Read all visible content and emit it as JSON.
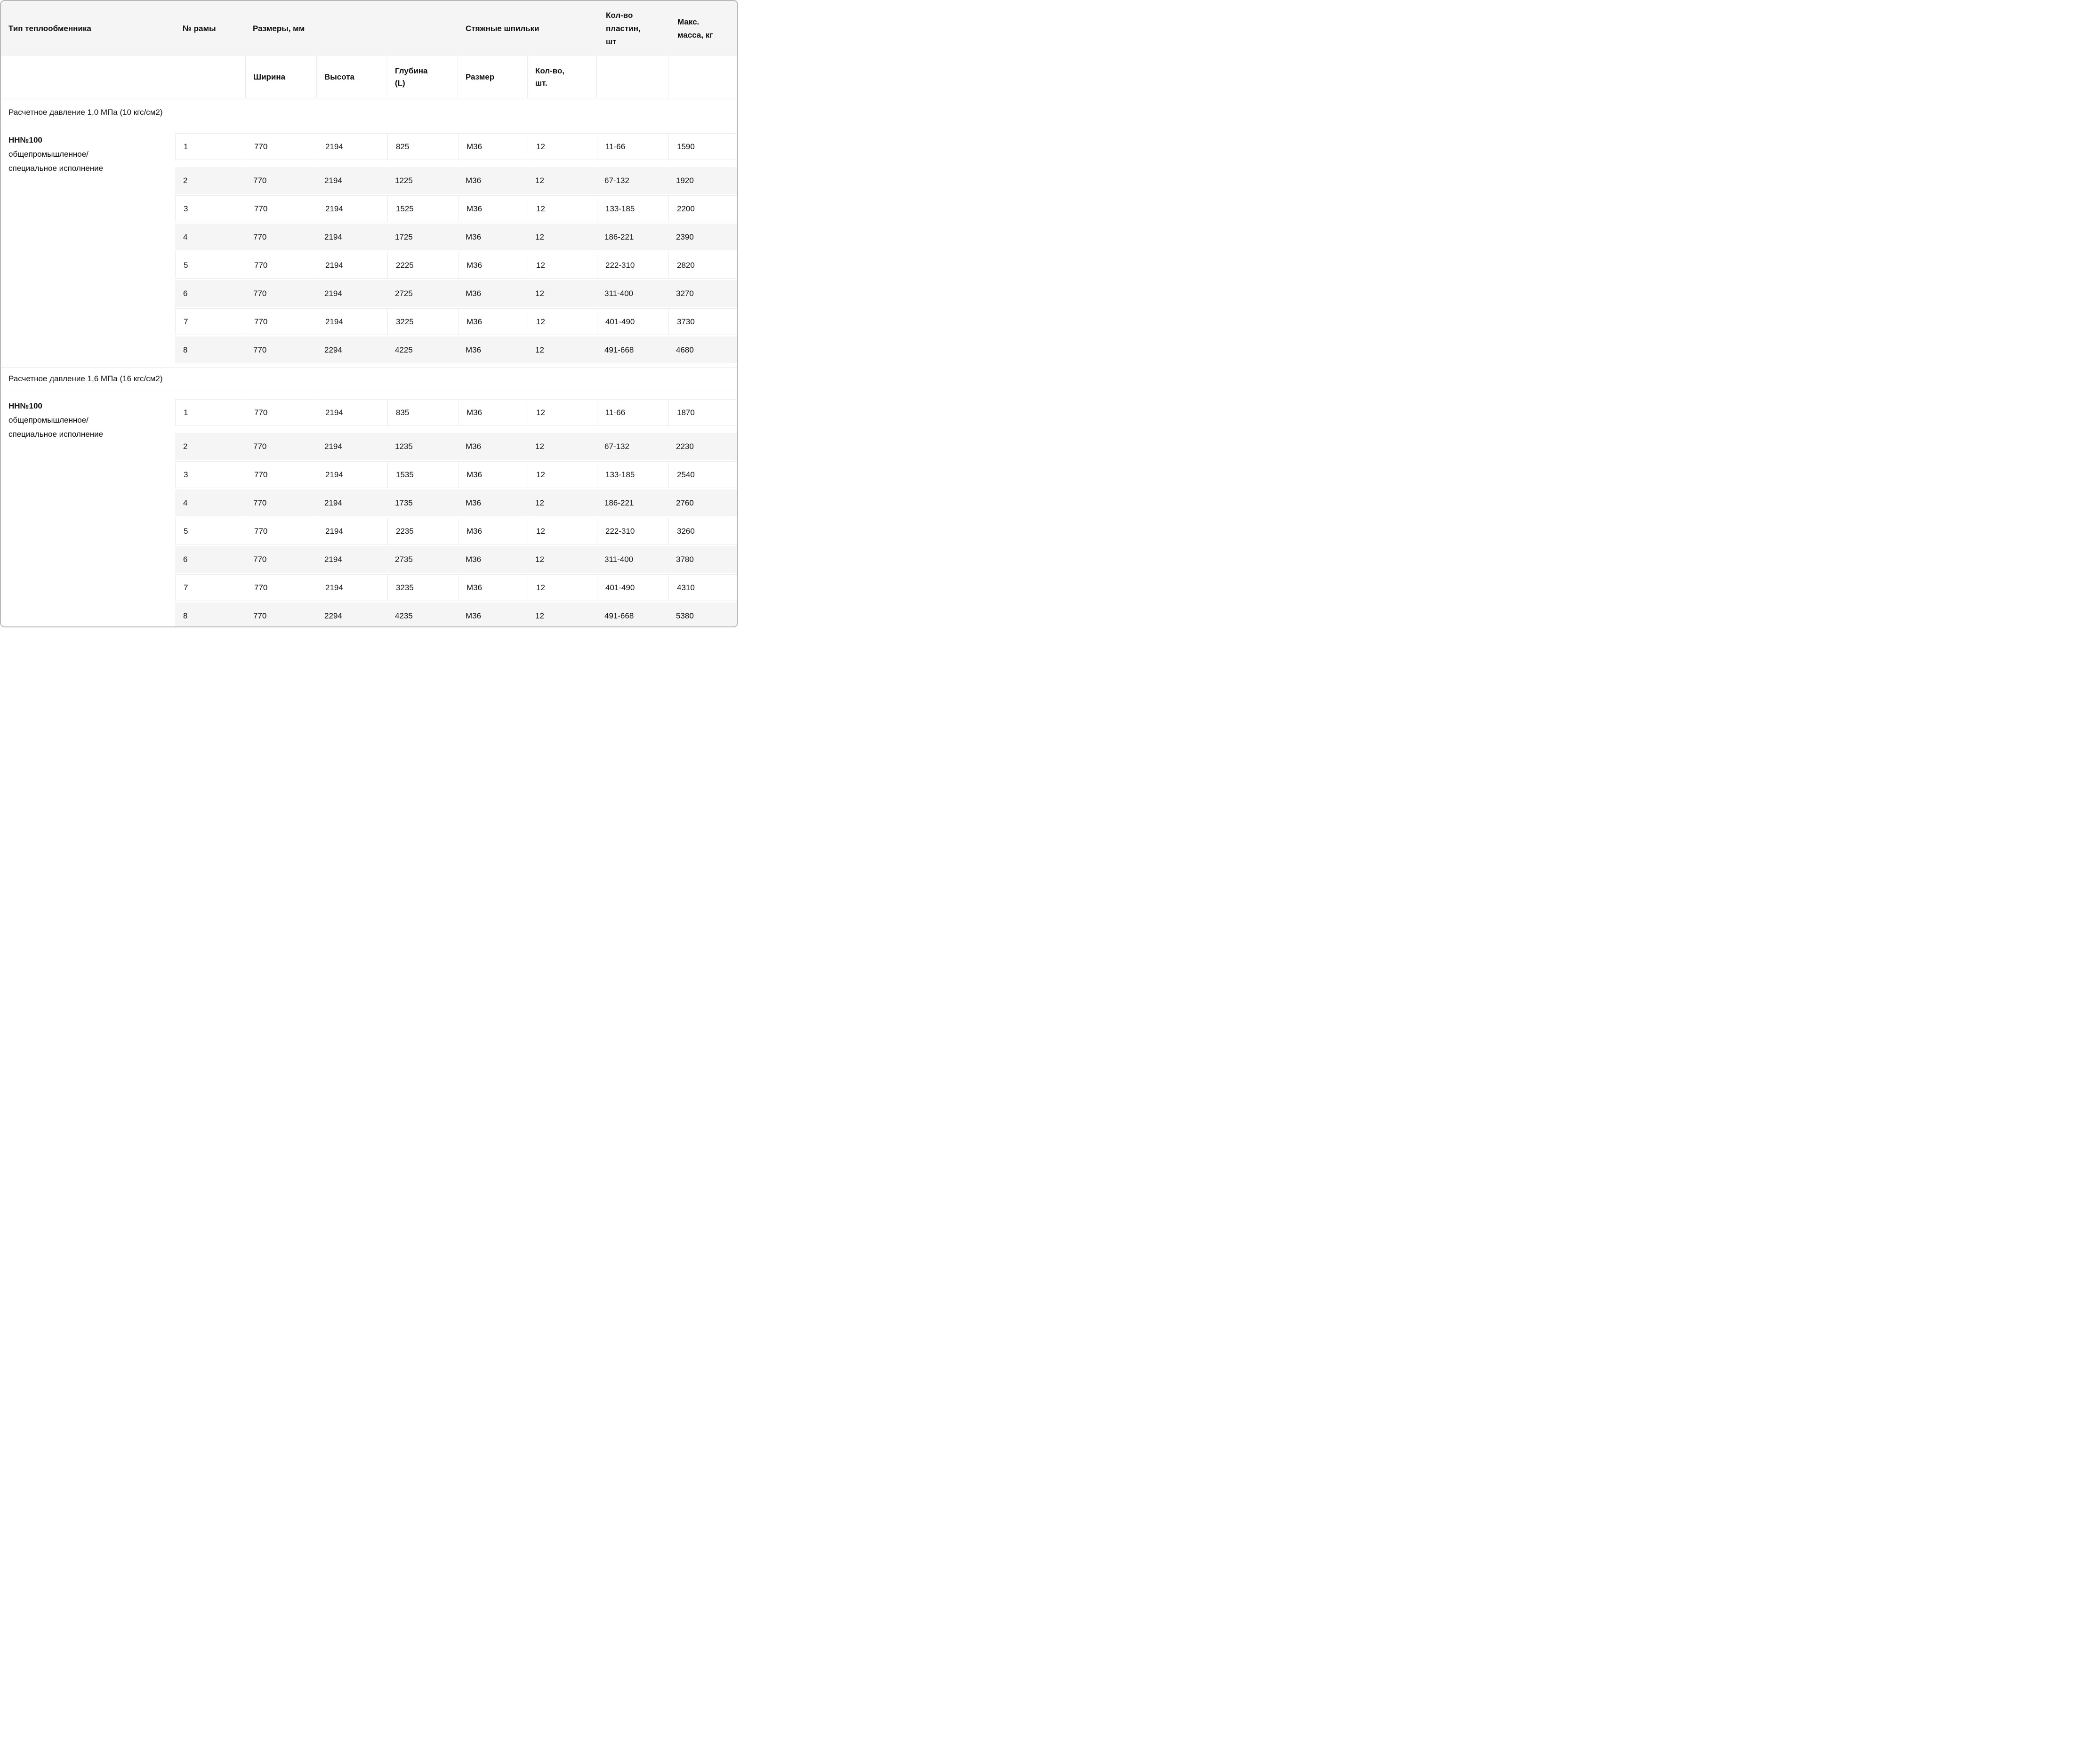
{
  "colors": {
    "row_alt_background": "#f5f5f5",
    "header_background": "#f5f5f5",
    "grid_line": "#ececec",
    "card_border": "#b9b9b9",
    "text": "#111111"
  },
  "header": {
    "col_type": "Тип теплообменника",
    "col_frame": "№ рамы",
    "col_dimensions": "Размеры, мм",
    "col_studs": "Стяжные шпильки",
    "col_plates": "Кол-во\nпластин,\nшт",
    "col_mass": "Макс.\nмасса, кг",
    "sub_width": "Ширина",
    "sub_height": "Высота",
    "sub_depth": "Глубина\n(L)",
    "sub_size": "Размер",
    "sub_qty": "Кол-во,\nшт."
  },
  "sections": [
    {
      "title": "Расчетное давление 1,0 МПа (10 кгс/см2)",
      "type_name": "НН№100",
      "type_desc": "общепромышленное/\nспециальное исполнение",
      "rows": [
        {
          "frame": "1",
          "width": "770",
          "height": "2194",
          "depth": "825",
          "size": "М36",
          "qty": "12",
          "plates": "11-66",
          "mass": "1590"
        },
        {
          "frame": "2",
          "width": "770",
          "height": "2194",
          "depth": "1225",
          "size": "М36",
          "qty": "12",
          "plates": "67-132",
          "mass": "1920"
        },
        {
          "frame": "3",
          "width": "770",
          "height": "2194",
          "depth": "1525",
          "size": "М36",
          "qty": "12",
          "plates": "133-185",
          "mass": "2200"
        },
        {
          "frame": "4",
          "width": "770",
          "height": "2194",
          "depth": "1725",
          "size": "М36",
          "qty": "12",
          "plates": "186-221",
          "mass": "2390"
        },
        {
          "frame": "5",
          "width": "770",
          "height": "2194",
          "depth": "2225",
          "size": "М36",
          "qty": "12",
          "plates": "222-310",
          "mass": "2820"
        },
        {
          "frame": "6",
          "width": "770",
          "height": "2194",
          "depth": "2725",
          "size": "М36",
          "qty": "12",
          "plates": "311-400",
          "mass": "3270"
        },
        {
          "frame": "7",
          "width": "770",
          "height": "2194",
          "depth": "3225",
          "size": "М36",
          "qty": "12",
          "plates": "401-490",
          "mass": "3730"
        },
        {
          "frame": "8",
          "width": "770",
          "height": "2294",
          "depth": "4225",
          "size": "М36",
          "qty": "12",
          "plates": "491-668",
          "mass": "4680"
        }
      ]
    },
    {
      "title": "Расчетное давление 1,6 МПа (16 кгс/см2)",
      "type_name": "НН№100",
      "type_desc": "общепромышленное/\nспециальное исполнение",
      "rows": [
        {
          "frame": "1",
          "width": "770",
          "height": "2194",
          "depth": "835",
          "size": "М36",
          "qty": "12",
          "plates": "11-66",
          "mass": "1870"
        },
        {
          "frame": "2",
          "width": "770",
          "height": "2194",
          "depth": "1235",
          "size": "М36",
          "qty": "12",
          "plates": "67-132",
          "mass": "2230"
        },
        {
          "frame": "3",
          "width": "770",
          "height": "2194",
          "depth": "1535",
          "size": "М36",
          "qty": "12",
          "plates": "133-185",
          "mass": "2540"
        },
        {
          "frame": "4",
          "width": "770",
          "height": "2194",
          "depth": "1735",
          "size": "М36",
          "qty": "12",
          "plates": "186-221",
          "mass": "2760"
        },
        {
          "frame": "5",
          "width": "770",
          "height": "2194",
          "depth": "2235",
          "size": "М36",
          "qty": "12",
          "plates": "222-310",
          "mass": "3260"
        },
        {
          "frame": "6",
          "width": "770",
          "height": "2194",
          "depth": "2735",
          "size": "М36",
          "qty": "12",
          "plates": "311-400",
          "mass": "3780"
        },
        {
          "frame": "7",
          "width": "770",
          "height": "2194",
          "depth": "3235",
          "size": "М36",
          "qty": "12",
          "plates": "401-490",
          "mass": "4310"
        },
        {
          "frame": "8",
          "width": "770",
          "height": "2294",
          "depth": "4235",
          "size": "М36",
          "qty": "12",
          "plates": "491-668",
          "mass": "5380"
        }
      ]
    }
  ]
}
